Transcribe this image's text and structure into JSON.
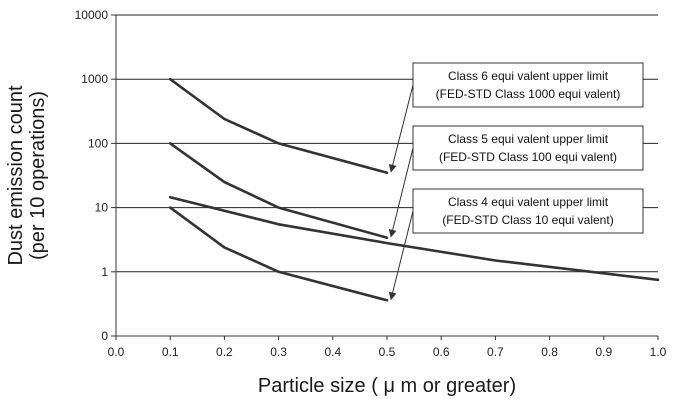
{
  "chart_data": {
    "type": "line",
    "xlabel": "Particle size ( μ m or greater)",
    "ylabel_line1": "Dust emission count",
    "ylabel_line2": "(per 10 operations)",
    "xlim": [
      0.0,
      1.0
    ],
    "ylim": [
      0.1,
      10000
    ],
    "y_scale": "log",
    "x_ticks": [
      "0.0",
      "0.1",
      "0.2",
      "0.3",
      "0.4",
      "0.5",
      "0.6",
      "0.7",
      "0.8",
      "0.9",
      "1.0"
    ],
    "y_ticks": [
      {
        "value": 0.1,
        "label": "0"
      },
      {
        "value": 1,
        "label": "1"
      },
      {
        "value": 10,
        "label": "10"
      },
      {
        "value": 100,
        "label": "100"
      },
      {
        "value": 1000,
        "label": "1000"
      },
      {
        "value": 10000,
        "label": "10000"
      }
    ],
    "grid": "horizontal",
    "series": [
      {
        "x": [
          0.1,
          0.2,
          0.3,
          0.5
        ],
        "y": [
          1000,
          240,
          100,
          35
        ]
      },
      {
        "x": [
          0.1,
          0.2,
          0.3,
          0.5
        ],
        "y": [
          100,
          25,
          10,
          3.4
        ]
      },
      {
        "x": [
          0.1,
          0.2,
          0.3,
          0.5
        ],
        "y": [
          10,
          2.4,
          1.0,
          0.36
        ]
      },
      {
        "x": [
          0.1,
          0.3,
          0.5,
          0.7,
          1.0
        ],
        "y": [
          14.5,
          5.5,
          2.8,
          1.5,
          0.75
        ]
      }
    ],
    "annotations": [
      {
        "line1": "Class 6 equi valent upper limit",
        "line2": "(FED-STD Class 1000 equi valent)",
        "target": {
          "x": 0.5,
          "y": 35
        }
      },
      {
        "line1": "Class 5 equi valent upper limit",
        "line2": "(FED-STD Class 100 equi valent)",
        "target": {
          "x": 0.5,
          "y": 3.4
        }
      },
      {
        "line1": "Class 4 equi valent upper limit",
        "line2": "(FED-STD Class 10 equi valent)",
        "target": {
          "x": 0.5,
          "y": 0.36
        }
      }
    ],
    "colors": {
      "line": "#333333",
      "grid": "#222222",
      "text": "#222222"
    }
  }
}
